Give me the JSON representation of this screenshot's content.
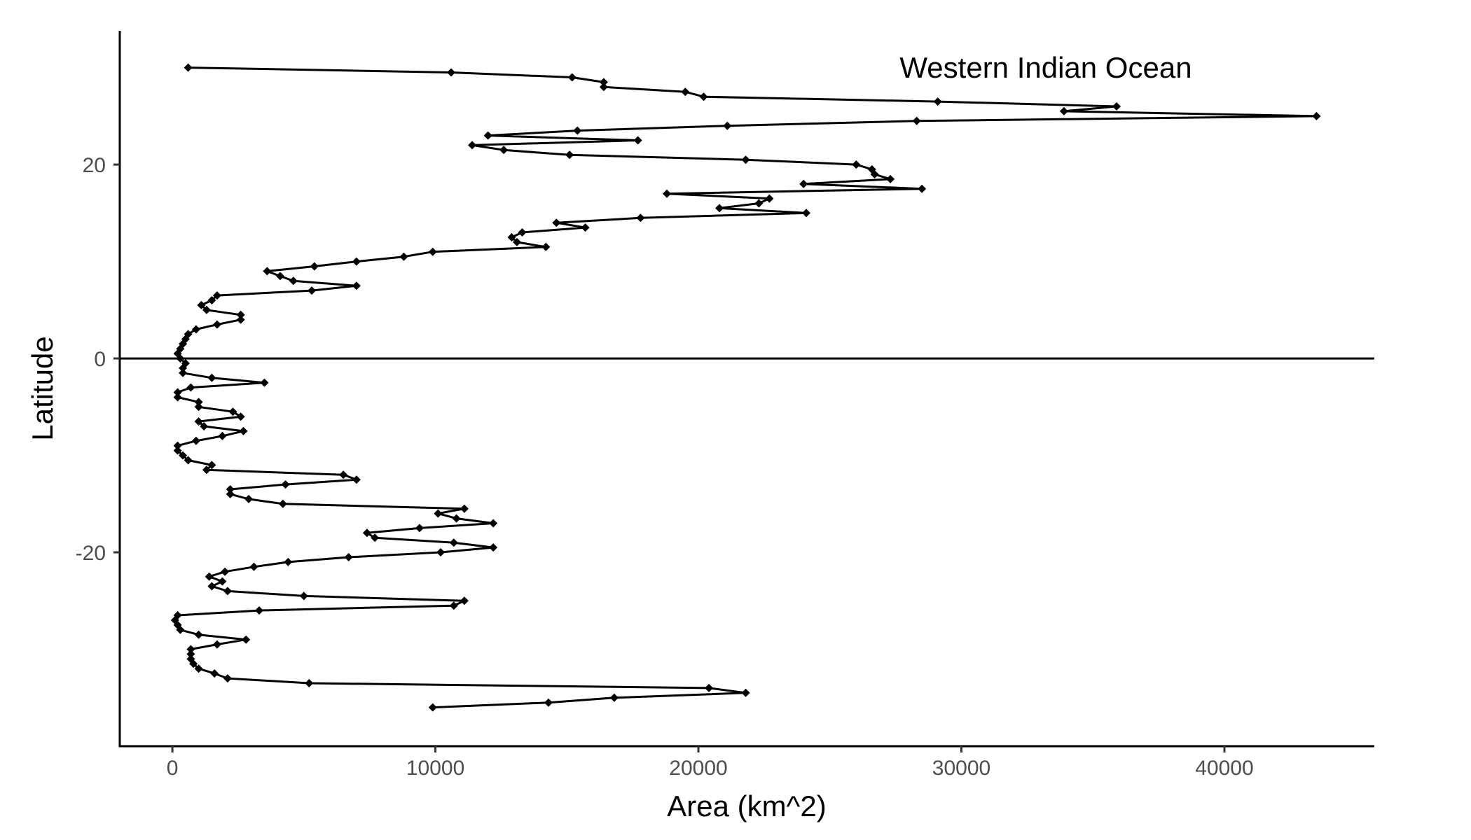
{
  "chart_data": {
    "type": "line",
    "title": "",
    "annotation": "Western Indian Ocean",
    "xlabel": "Area (km^2)",
    "ylabel": "Latitude",
    "xlim": [
      -2000,
      45700
    ],
    "ylim": [
      -40,
      33.8
    ],
    "x_ticks": [
      0,
      10000,
      20000,
      30000,
      40000
    ],
    "y_ticks": [
      -20,
      0,
      20
    ],
    "reference_line_y": 0,
    "grid": false,
    "marker": "diamond",
    "color": "#000000",
    "series": [
      {
        "name": "Western Indian Ocean",
        "points": [
          [
            600,
            30
          ],
          [
            10600,
            29.5
          ],
          [
            15200,
            29
          ],
          [
            16400,
            28.5
          ],
          [
            16400,
            28
          ],
          [
            19500,
            27.5
          ],
          [
            20200,
            27
          ],
          [
            29100,
            26.5
          ],
          [
            35900,
            26
          ],
          [
            33900,
            25.5
          ],
          [
            43500,
            25
          ],
          [
            28300,
            24.5
          ],
          [
            21100,
            24
          ],
          [
            15400,
            23.5
          ],
          [
            12000,
            23
          ],
          [
            17700,
            22.5
          ],
          [
            11400,
            22
          ],
          [
            12600,
            21.5
          ],
          [
            15100,
            21
          ],
          [
            21800,
            20.5
          ],
          [
            26000,
            20
          ],
          [
            26600,
            19.5
          ],
          [
            26700,
            19
          ],
          [
            27300,
            18.5
          ],
          [
            24000,
            18
          ],
          [
            28500,
            17.5
          ],
          [
            18800,
            17
          ],
          [
            22700,
            16.5
          ],
          [
            22300,
            16
          ],
          [
            20800,
            15.5
          ],
          [
            24100,
            15
          ],
          [
            17800,
            14.5
          ],
          [
            14600,
            14
          ],
          [
            15700,
            13.5
          ],
          [
            13300,
            13
          ],
          [
            12900,
            12.5
          ],
          [
            13100,
            12
          ],
          [
            14200,
            11.5
          ],
          [
            9900,
            11
          ],
          [
            8800,
            10.5
          ],
          [
            7000,
            10
          ],
          [
            5400,
            9.5
          ],
          [
            3600,
            9
          ],
          [
            4100,
            8.5
          ],
          [
            4600,
            8
          ],
          [
            7000,
            7.5
          ],
          [
            5300,
            7
          ],
          [
            1700,
            6.5
          ],
          [
            1500,
            6
          ],
          [
            1100,
            5.5
          ],
          [
            1300,
            5
          ],
          [
            2600,
            4.5
          ],
          [
            2600,
            4
          ],
          [
            1700,
            3.5
          ],
          [
            900,
            3
          ],
          [
            600,
            2.5
          ],
          [
            500,
            2
          ],
          [
            400,
            1.5
          ],
          [
            300,
            1
          ],
          [
            200,
            0.5
          ],
          [
            300,
            0
          ],
          [
            500,
            -0.5
          ],
          [
            400,
            -1
          ],
          [
            400,
            -1.5
          ],
          [
            1500,
            -2
          ],
          [
            3500,
            -2.5
          ],
          [
            700,
            -3
          ],
          [
            200,
            -3.5
          ],
          [
            200,
            -4
          ],
          [
            1000,
            -4.5
          ],
          [
            1000,
            -5
          ],
          [
            2300,
            -5.5
          ],
          [
            2600,
            -6
          ],
          [
            1000,
            -6.5
          ],
          [
            1200,
            -7
          ],
          [
            2700,
            -7.5
          ],
          [
            1900,
            -8
          ],
          [
            900,
            -8.5
          ],
          [
            200,
            -9
          ],
          [
            200,
            -9.5
          ],
          [
            400,
            -10
          ],
          [
            600,
            -10.5
          ],
          [
            1500,
            -11
          ],
          [
            1300,
            -11.5
          ],
          [
            6500,
            -12
          ],
          [
            7000,
            -12.5
          ],
          [
            4300,
            -13
          ],
          [
            2200,
            -13.5
          ],
          [
            2200,
            -14
          ],
          [
            2900,
            -14.5
          ],
          [
            4200,
            -15
          ],
          [
            11100,
            -15.5
          ],
          [
            10100,
            -16
          ],
          [
            10800,
            -16.5
          ],
          [
            12200,
            -17
          ],
          [
            9400,
            -17.5
          ],
          [
            7400,
            -18
          ],
          [
            7700,
            -18.5
          ],
          [
            10700,
            -19
          ],
          [
            12200,
            -19.5
          ],
          [
            10200,
            -20
          ],
          [
            6700,
            -20.5
          ],
          [
            4400,
            -21
          ],
          [
            3100,
            -21.5
          ],
          [
            2000,
            -22
          ],
          [
            1400,
            -22.5
          ],
          [
            1900,
            -23
          ],
          [
            1500,
            -23.5
          ],
          [
            2100,
            -24
          ],
          [
            5000,
            -24.5
          ],
          [
            11100,
            -25
          ],
          [
            10700,
            -25.5
          ],
          [
            3300,
            -26
          ],
          [
            200,
            -26.5
          ],
          [
            100,
            -27
          ],
          [
            200,
            -27.5
          ],
          [
            300,
            -28
          ],
          [
            1000,
            -28.5
          ],
          [
            2800,
            -29
          ],
          [
            1700,
            -29.5
          ],
          [
            700,
            -30
          ],
          [
            700,
            -30.5
          ],
          [
            700,
            -31
          ],
          [
            800,
            -31.5
          ],
          [
            1000,
            -32
          ],
          [
            1600,
            -32.5
          ],
          [
            2100,
            -33
          ],
          [
            5200,
            -33.5
          ],
          [
            20400,
            -34
          ],
          [
            21800,
            -34.5
          ],
          [
            16800,
            -35
          ],
          [
            14300,
            -35.5
          ],
          [
            9900,
            -36
          ]
        ]
      }
    ]
  }
}
